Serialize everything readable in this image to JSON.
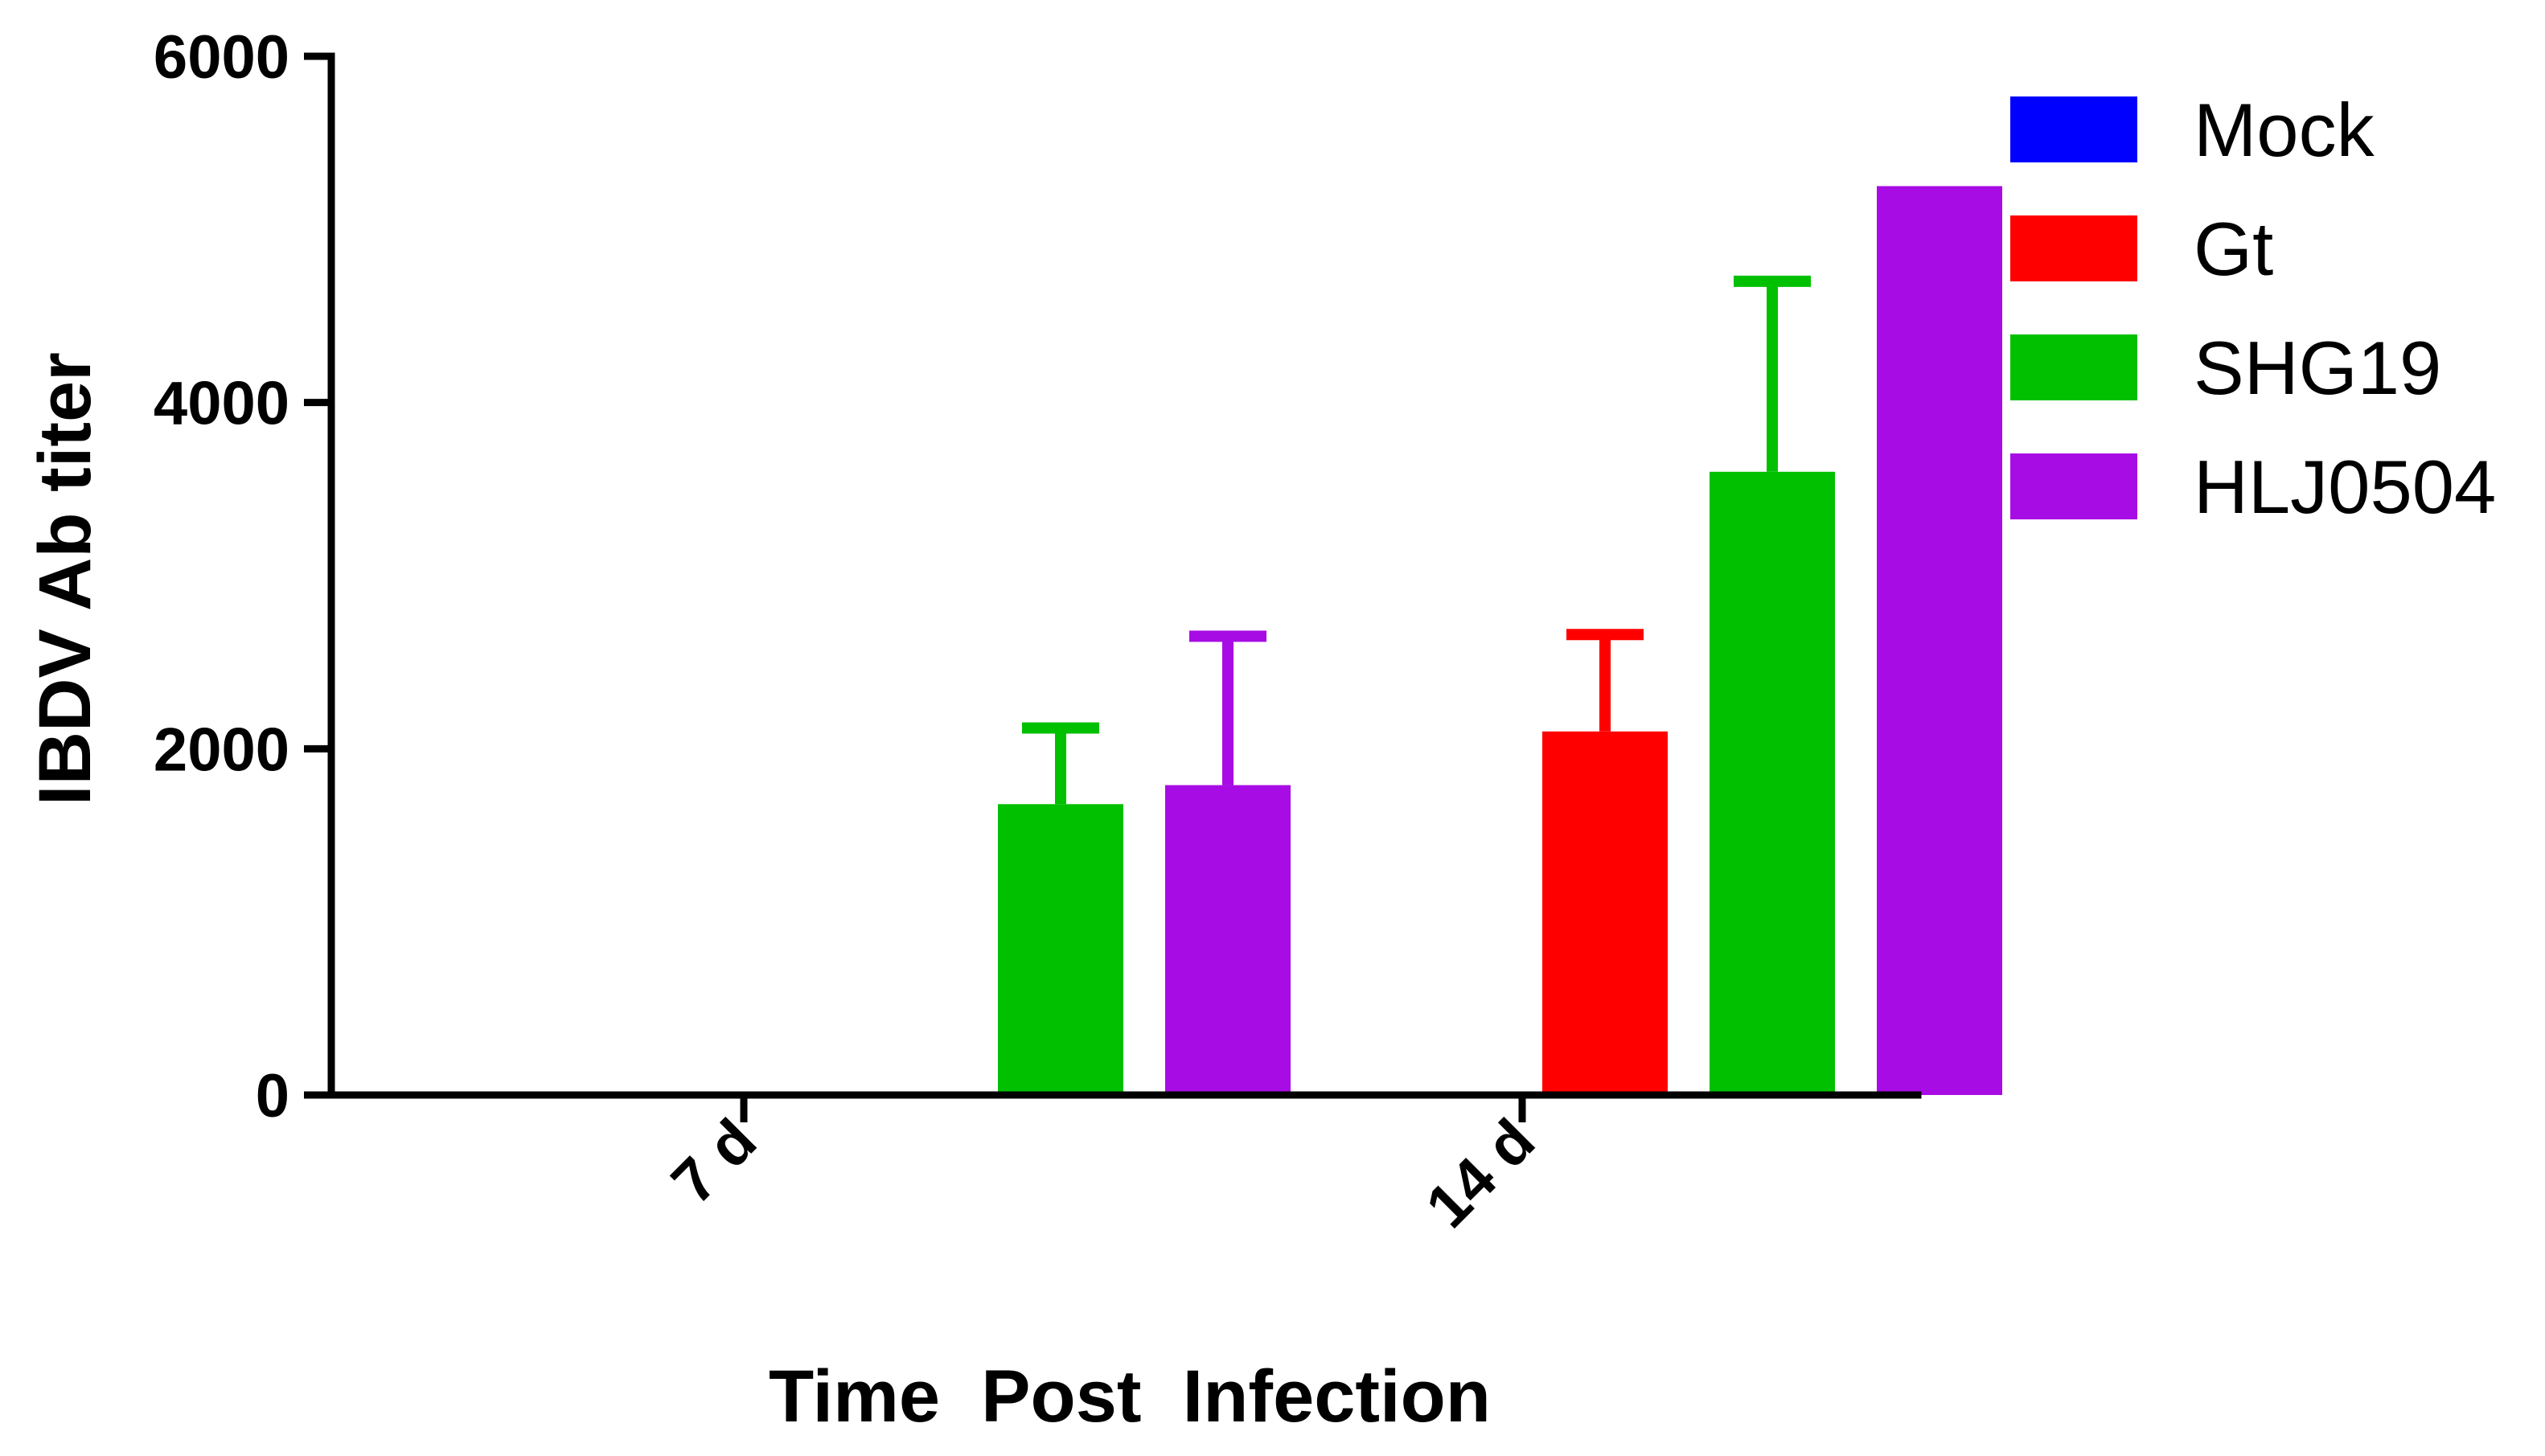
{
  "chart_data": {
    "type": "bar",
    "title": "",
    "xlabel": "Time  Post  Infection",
    "ylabel": "IBDV Ab titer",
    "ylim": [
      0,
      6000
    ],
    "yticks": [
      0,
      2000,
      4000,
      6000
    ],
    "categories": [
      "7 d",
      "14 d"
    ],
    "series": [
      {
        "name": "Mock",
        "color": "#0000FF",
        "values": [
          0,
          0
        ],
        "errors": [
          0,
          0
        ]
      },
      {
        "name": "Gt",
        "color": "#FF0000",
        "values": [
          0,
          2100
        ],
        "errors": [
          0,
          560
        ]
      },
      {
        "name": "SHG19",
        "color": "#00C000",
        "values": [
          1680,
          3600
        ],
        "errors": [
          440,
          1100
        ]
      },
      {
        "name": "HLJ0504",
        "color": "#A80CE4",
        "values": [
          1790,
          5250
        ],
        "errors": [
          860,
          0
        ]
      }
    ],
    "legend_position": "right",
    "grid": false
  }
}
